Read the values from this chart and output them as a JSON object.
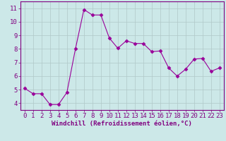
{
  "x": [
    0,
    1,
    2,
    3,
    4,
    5,
    6,
    7,
    8,
    9,
    10,
    11,
    12,
    13,
    14,
    15,
    16,
    17,
    18,
    19,
    20,
    21,
    22,
    23
  ],
  "y": [
    5.1,
    4.7,
    4.7,
    3.9,
    3.9,
    4.8,
    8.0,
    10.9,
    10.5,
    10.5,
    8.8,
    8.05,
    8.6,
    8.4,
    8.4,
    7.8,
    7.85,
    6.6,
    6.0,
    6.5,
    7.25,
    7.3,
    6.35,
    6.6
  ],
  "line_color": "#990099",
  "marker": "D",
  "marker_size": 2.5,
  "bg_color": "#cce8e8",
  "grid_color": "#b0c8c8",
  "xlabel": "Windchill (Refroidissement éolien,°C)",
  "xlim": [
    -0.5,
    23.5
  ],
  "ylim": [
    3.5,
    11.5
  ],
  "yticks": [
    4,
    5,
    6,
    7,
    8,
    9,
    10,
    11
  ],
  "xticks": [
    0,
    1,
    2,
    3,
    4,
    5,
    6,
    7,
    8,
    9,
    10,
    11,
    12,
    13,
    14,
    15,
    16,
    17,
    18,
    19,
    20,
    21,
    22,
    23
  ],
  "xlabel_fontsize": 6.5,
  "tick_fontsize": 6.5,
  "label_color": "#800080",
  "spine_color": "#800080"
}
